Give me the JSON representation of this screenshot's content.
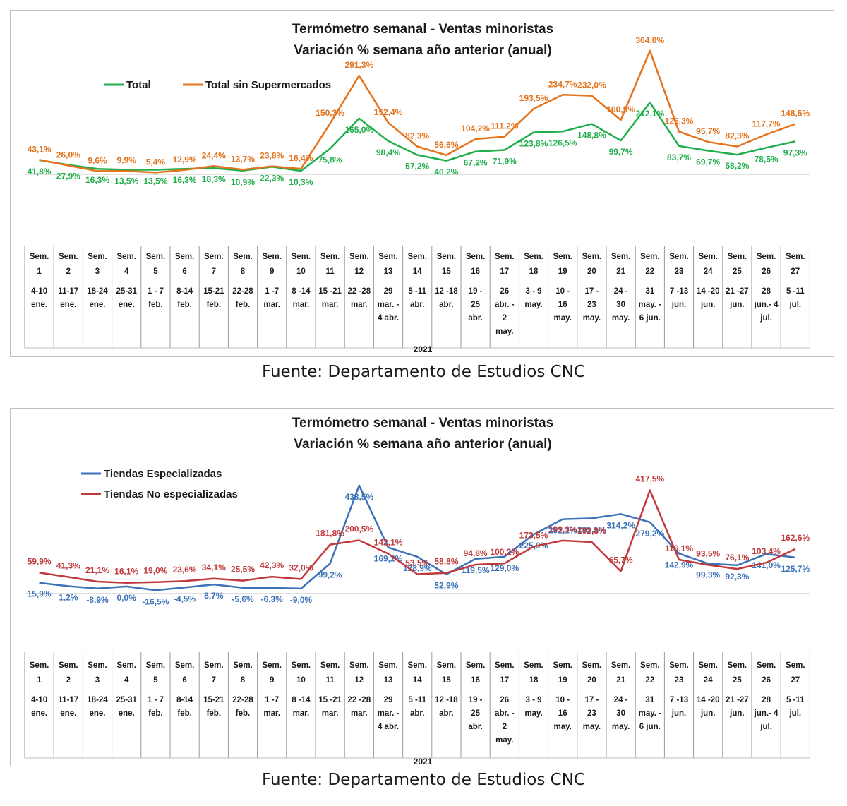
{
  "source_text": "Fuente: Departamento de Estudios CNC",
  "year_label": "2021",
  "categories": [
    {
      "week": [
        "Sem.",
        "1"
      ],
      "range": [
        "4-10",
        "ene."
      ]
    },
    {
      "week": [
        "Sem.",
        "2"
      ],
      "range": [
        "11-17",
        "ene."
      ]
    },
    {
      "week": [
        "Sem.",
        "3"
      ],
      "range": [
        "18-24",
        "ene."
      ]
    },
    {
      "week": [
        "Sem.",
        "4"
      ],
      "range": [
        "25-31",
        "ene."
      ]
    },
    {
      "week": [
        "Sem.",
        "5"
      ],
      "range": [
        "1 - 7",
        "feb."
      ]
    },
    {
      "week": [
        "Sem.",
        "6"
      ],
      "range": [
        "8-14",
        "feb."
      ]
    },
    {
      "week": [
        "Sem.",
        "7"
      ],
      "range": [
        "15-21",
        "feb."
      ]
    },
    {
      "week": [
        "Sem.",
        "8"
      ],
      "range": [
        "22-28",
        "feb."
      ]
    },
    {
      "week": [
        "Sem.",
        "9"
      ],
      "range": [
        "1 -7",
        "mar."
      ]
    },
    {
      "week": [
        "Sem.",
        "10"
      ],
      "range": [
        "8 -14",
        "mar."
      ]
    },
    {
      "week": [
        "Sem.",
        "11"
      ],
      "range": [
        "15 -21",
        "mar."
      ]
    },
    {
      "week": [
        "Sem.",
        "12"
      ],
      "range": [
        "22 -28",
        "mar."
      ]
    },
    {
      "week": [
        "Sem.",
        "13"
      ],
      "range": [
        "29",
        "mar. -",
        "4 abr."
      ]
    },
    {
      "week": [
        "Sem.",
        "14"
      ],
      "range": [
        "5 -11",
        "abr."
      ]
    },
    {
      "week": [
        "Sem.",
        "15"
      ],
      "range": [
        "12 -18",
        "abr."
      ]
    },
    {
      "week": [
        "Sem.",
        "16"
      ],
      "range": [
        "19 -",
        "25",
        "abr."
      ]
    },
    {
      "week": [
        "Sem.",
        "17"
      ],
      "range": [
        "26",
        "abr. -",
        "2",
        "may."
      ]
    },
    {
      "week": [
        "Sem.",
        "18"
      ],
      "range": [
        "3 - 9",
        "may."
      ]
    },
    {
      "week": [
        "Sem.",
        "19"
      ],
      "range": [
        "10 -",
        "16",
        "may."
      ]
    },
    {
      "week": [
        "Sem.",
        "20"
      ],
      "range": [
        "17 -",
        "23",
        "may."
      ]
    },
    {
      "week": [
        "Sem.",
        "21"
      ],
      "range": [
        "24 -",
        "30",
        "may."
      ]
    },
    {
      "week": [
        "Sem.",
        "22"
      ],
      "range": [
        "31",
        "may. -",
        "6 jun."
      ]
    },
    {
      "week": [
        "Sem.",
        "23"
      ],
      "range": [
        "7 -13",
        "jun."
      ]
    },
    {
      "week": [
        "Sem.",
        "24"
      ],
      "range": [
        "14 -20",
        "jun."
      ]
    },
    {
      "week": [
        "Sem.",
        "25"
      ],
      "range": [
        "21 -27",
        "jun."
      ]
    },
    {
      "week": [
        "Sem.",
        "26"
      ],
      "range": [
        "28",
        "jun.- 4",
        "jul."
      ]
    },
    {
      "week": [
        "Sem.",
        "27"
      ],
      "range": [
        "5 -11",
        "jul."
      ]
    }
  ],
  "chart_data": [
    {
      "type": "line",
      "title": [
        "Termómetro semanal - Ventas minoristas",
        "Variación % semana año anterior (anual)"
      ],
      "legend_position": "top-left",
      "grid": false,
      "ylim": [
        0,
        400
      ],
      "series": [
        {
          "name": "Total",
          "color": "#1fae4b",
          "label_position": "below",
          "values": [
            41.8,
            27.9,
            16.3,
            13.5,
            13.5,
            16.3,
            18.3,
            10.9,
            22.3,
            10.3,
            75.8,
            165.0,
            98.4,
            57.2,
            40.2,
            67.2,
            71.9,
            123.8,
            126.5,
            148.8,
            99.7,
            212.1,
            83.7,
            69.7,
            58.2,
            78.5,
            97.3
          ],
          "labels": [
            "41,8%",
            "27,9%",
            "16,3%",
            "13,5%",
            "13,5%",
            "16,3%",
            "18,3%",
            "10,9%",
            "22,3%",
            "10,3%",
            "75,8%",
            "165,0%",
            "98,4%",
            "57,2%",
            "40,2%",
            "67,2%",
            "71,9%",
            "123,8%",
            "126,5%",
            "148,8%",
            "99,7%",
            "212,1%",
            "83,7%",
            "69,7%",
            "58,2%",
            "78,5%",
            "97,3%"
          ]
        },
        {
          "name": "Total sin Supermercados",
          "color": "#e3731c",
          "label_position": "above",
          "values": [
            43.1,
            26.0,
            9.6,
            9.9,
            5.4,
            12.9,
            24.4,
            13.7,
            23.8,
            16.4,
            150.3,
            291.3,
            152.4,
            82.3,
            56.6,
            104.2,
            111.2,
            193.5,
            234.7,
            232.0,
            160.5,
            364.8,
            126.3,
            95.7,
            82.3,
            117.7,
            148.5
          ],
          "labels": [
            "43,1%",
            "26,0%",
            "9,6%",
            "9,9%",
            "5,4%",
            "12,9%",
            "24,4%",
            "13,7%",
            "23,8%",
            "16,4%",
            "150,3%",
            "291,3%",
            "152,4%",
            "82,3%",
            "56,6%",
            "104,2%",
            "111,2%",
            "193,5%",
            "234,7%",
            "232,0%",
            "160,5%",
            "364,8%",
            "126,3%",
            "95,7%",
            "82,3%",
            "117,7%",
            "148,5%"
          ]
        }
      ]
    },
    {
      "type": "line",
      "title": [
        "Termómetro semanal - Ventas minoristas",
        "Variación % semana año anterior (anual)"
      ],
      "legend_position": "top-left",
      "grid": false,
      "ylim": [
        -40,
        450
      ],
      "series": [
        {
          "name": "Tiendas Especializadas",
          "color": "#3c72b8",
          "label_position": "below",
          "values": [
            15.9,
            1.2,
            -8.9,
            0.0,
            -16.5,
            -4.5,
            8.7,
            -5.6,
            -6.3,
            -9.0,
            99.2,
            438.5,
            169.2,
            128.9,
            52.9,
            119.5,
            129.0,
            225.9,
            292.1,
            295.5,
            314.2,
            279.2,
            142.9,
            99.3,
            92.3,
            141.0,
            125.7
          ],
          "labels": [
            "15,9%",
            "1,2%",
            "-8,9%",
            "0,0%",
            "-16,5%",
            "-4,5%",
            "8,7%",
            "-5,6%",
            "-6,3%",
            "-9,0%",
            "99,2%",
            "438,5%",
            "169,2%",
            "128,9%",
            "52,9%",
            "119,5%",
            "129,0%",
            "225,9%",
            "292,1%",
            "295,5%",
            "314,2%",
            "279,2%",
            "142,9%",
            "99,3%",
            "92,3%",
            "141,0%",
            "125,7%"
          ]
        },
        {
          "name": "Tiendas No especializadas",
          "color": "#c0393b",
          "label_position": "above",
          "values": [
            59.9,
            41.3,
            21.1,
            16.1,
            19.0,
            23.6,
            34.1,
            25.5,
            42.3,
            32.0,
            181.8,
            200.5,
            142.1,
            53.5,
            58.8,
            94.8,
            100.2,
            173.5,
            199.3,
            192.8,
            65.7,
            417.5,
            116.1,
            93.5,
            76.1,
            103.4,
            162.6
          ],
          "labels": [
            "59,9%",
            "41,3%",
            "21,1%",
            "16,1%",
            "19,0%",
            "23,6%",
            "34,1%",
            "25,5%",
            "42,3%",
            "32,0%",
            "181,8%",
            "200,5%",
            "142,1%",
            "53,5%",
            "58,8%",
            "94,8%",
            "100,2%",
            "173,5%",
            "199,3%",
            "192,8%",
            "65,7%",
            "417,5%",
            "116,1%",
            "93,5%",
            "76,1%",
            "103,4%",
            "162,6%"
          ]
        }
      ]
    }
  ]
}
